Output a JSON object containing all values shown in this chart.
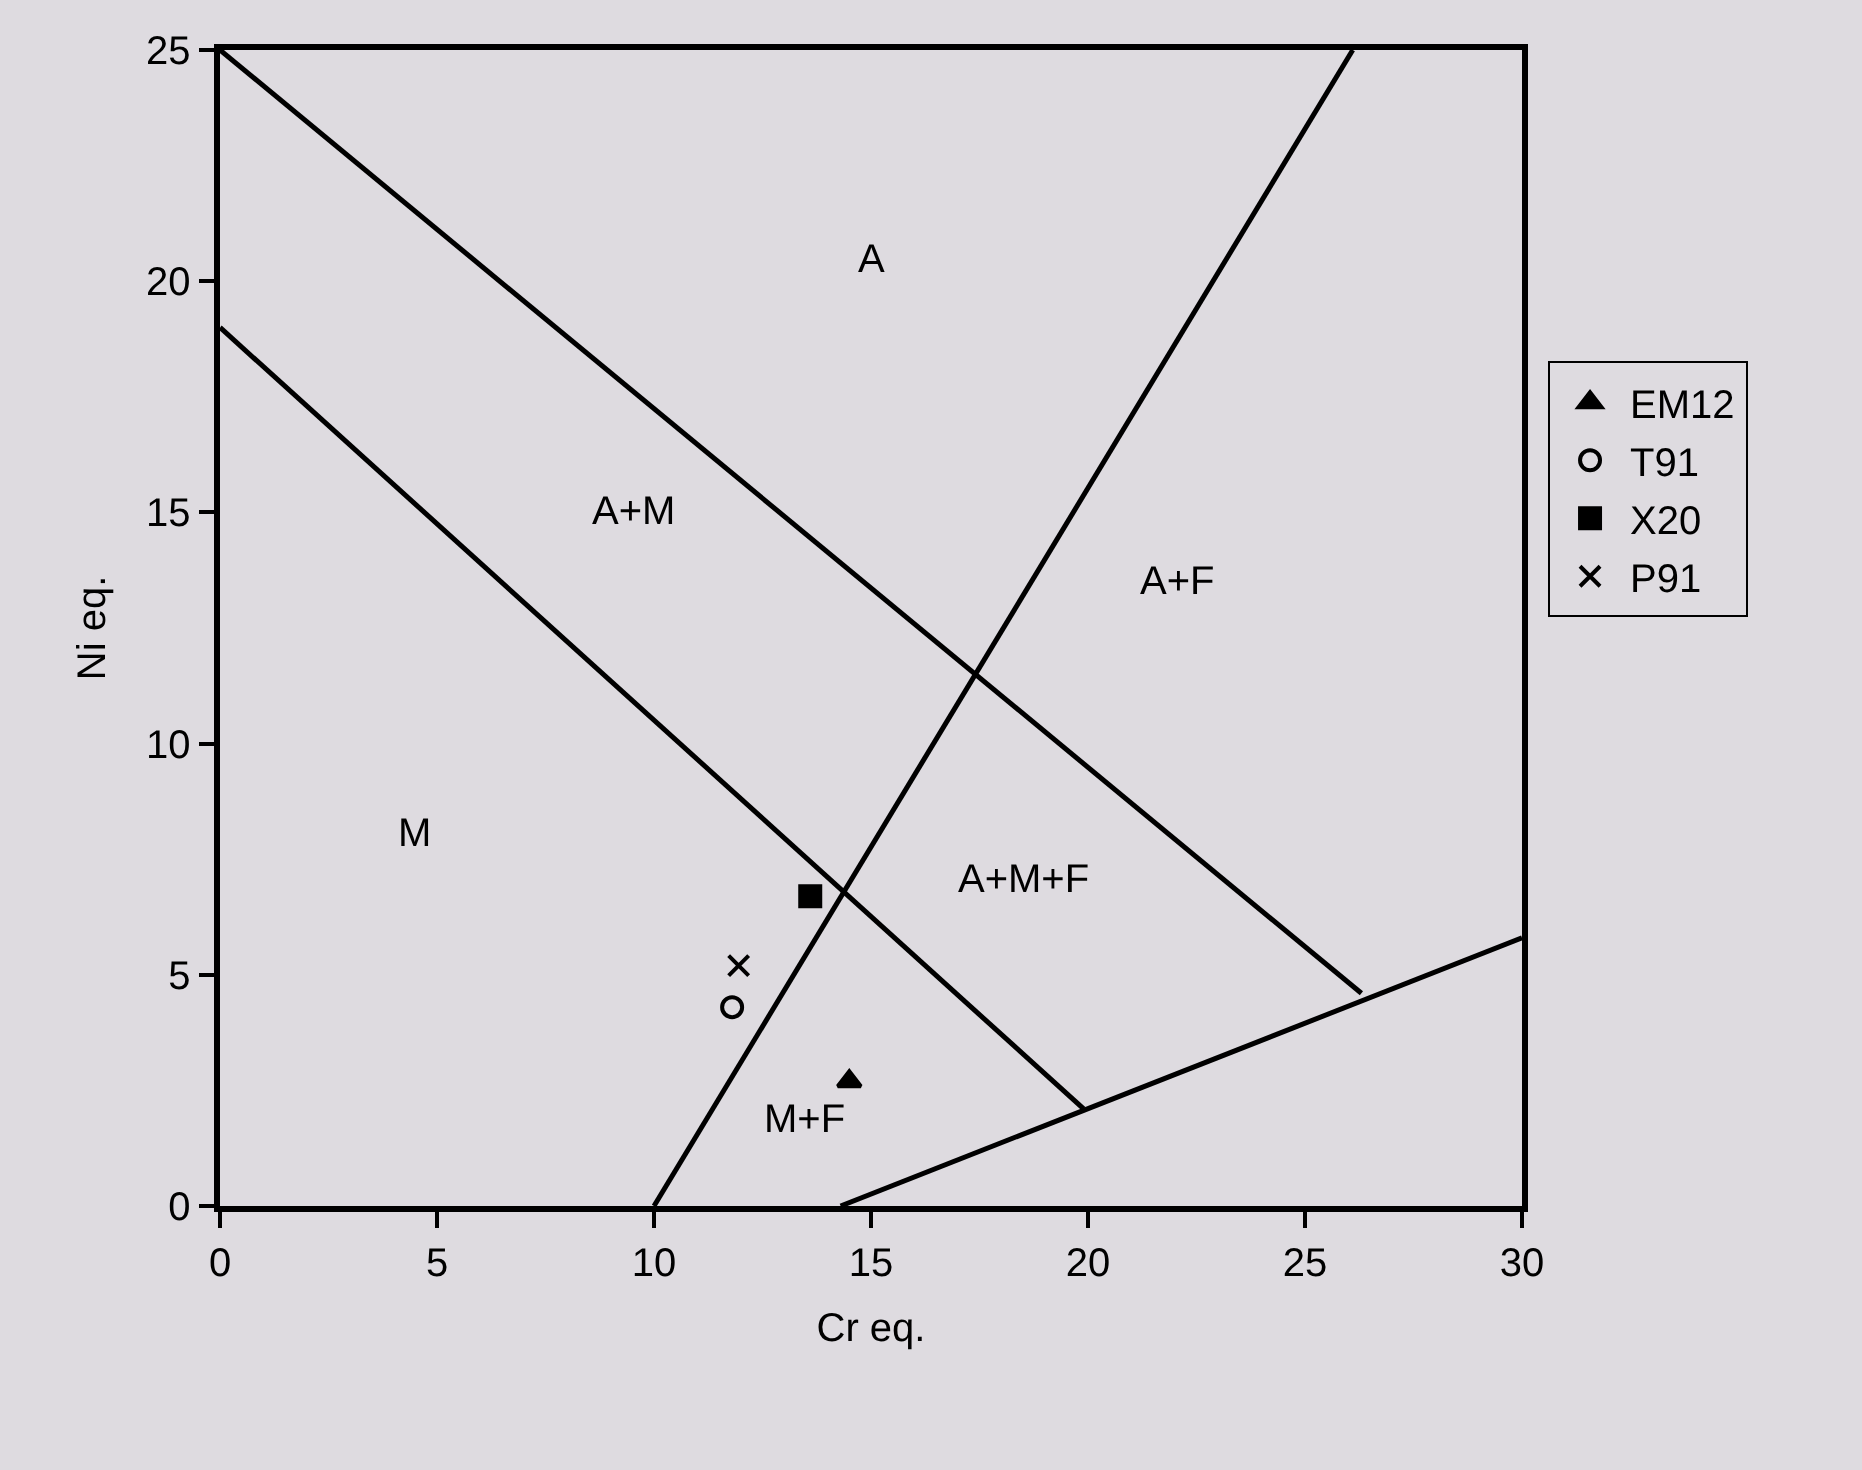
{
  "chart_data": {
    "type": "scatter",
    "xlabel": "Cr eq.",
    "ylabel": "Ni eq.",
    "xlim": [
      0,
      30
    ],
    "ylim": [
      0,
      25
    ],
    "xticks": [
      0,
      5,
      10,
      15,
      20,
      25,
      30
    ],
    "yticks": [
      0,
      5,
      10,
      15,
      20,
      25
    ],
    "grid": false,
    "legend": "right",
    "series": [
      {
        "type": "line",
        "color": "#000000",
        "x": [
          0,
          26.3
        ],
        "values": [
          25,
          4.6
        ]
      },
      {
        "type": "line",
        "color": "#000000",
        "x": [
          0,
          19.9
        ],
        "values": [
          19,
          2.1
        ]
      },
      {
        "type": "line",
        "color": "#000000",
        "x": [
          10,
          26.1
        ],
        "values": [
          0,
          25
        ]
      },
      {
        "type": "line",
        "color": "#000000",
        "x": [
          14.3,
          30
        ],
        "values": [
          0,
          5.8
        ]
      },
      {
        "name": "EM12",
        "color": "#000000",
        "marker": "triangle",
        "x": [
          14.5
        ],
        "values": [
          2.7
        ]
      },
      {
        "name": "T91",
        "color": "#000000",
        "marker": "circle",
        "x": [
          11.8
        ],
        "values": [
          4.3
        ]
      },
      {
        "name": "X20",
        "color": "#000000",
        "marker": "square",
        "x": [
          13.6
        ],
        "values": [
          6.7
        ]
      },
      {
        "name": "P91",
        "color": "#000000",
        "marker": "cross",
        "x": [
          11.95
        ],
        "values": [
          5.2
        ]
      }
    ],
    "annotations": [
      "A",
      "A+M",
      "A+F",
      "M",
      "A+M+F",
      "M+F"
    ]
  }
}
